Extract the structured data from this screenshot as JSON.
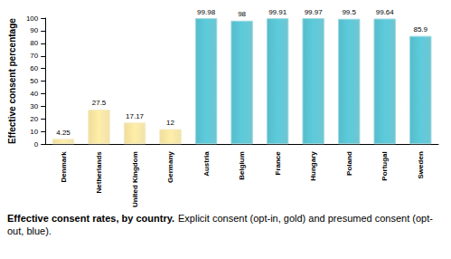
{
  "chart_data": {
    "type": "bar",
    "title": "Effective consent rates, by country.",
    "subtitle": "Explicit consent (opt-in, gold) and presumed consent (opt-out, blue).",
    "y_label": "Effective consent percentage",
    "categories": [
      "Denmark",
      "Netherlands",
      "United Kingdom",
      "Germany",
      "Austria",
      "Belgium",
      "France",
      "Hungary",
      "Poland",
      "Portugal",
      "Sweden"
    ],
    "values": [
      4.25,
      27.5,
      17.17,
      12,
      99.98,
      98,
      99.91,
      99.97,
      99.5,
      99.64,
      85.9
    ],
    "colors": [
      "#eedd9c",
      "#eedd9c",
      "#eedd9c",
      "#eedd9c",
      "#56bccb",
      "#56bccb",
      "#56bccb",
      "#56bccb",
      "#56bccb",
      "#56bccb",
      "#56bccb"
    ],
    "ylim": [
      0,
      100
    ],
    "yticks": [
      0,
      10,
      20,
      30,
      40,
      50,
      60,
      70,
      80,
      90,
      100
    ],
    "grid": false,
    "data_labels": true
  }
}
